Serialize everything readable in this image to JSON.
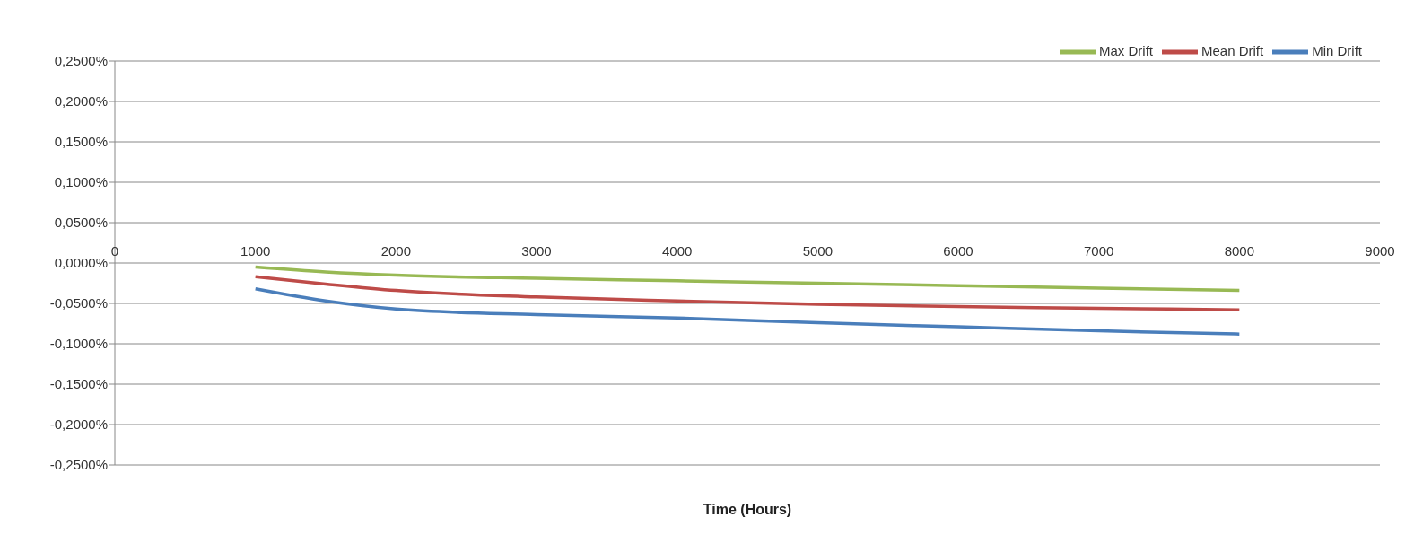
{
  "chart_data": {
    "type": "line",
    "xlabel": "Time (Hours)",
    "x": [
      1000,
      1500,
      2000,
      3000,
      4000,
      5000,
      6000,
      7000,
      8000
    ],
    "series": [
      {
        "name": "Min Drift",
        "color": "#4a7ebb",
        "values": [
          -0.032,
          -0.047,
          -0.057,
          -0.064,
          -0.068,
          -0.074,
          -0.079,
          -0.084,
          -0.088
        ]
      },
      {
        "name": "Mean Drift",
        "color": "#be4b48",
        "values": [
          -0.017,
          -0.026,
          -0.034,
          -0.042,
          -0.047,
          -0.051,
          -0.054,
          -0.056,
          -0.058
        ]
      },
      {
        "name": "Max Drift",
        "color": "#98b954",
        "values": [
          -0.005,
          -0.011,
          -0.015,
          -0.019,
          -0.022,
          -0.025,
          -0.028,
          -0.031,
          -0.034
        ]
      }
    ],
    "xlim": [
      0,
      9000
    ],
    "xticks": [
      0,
      1000,
      2000,
      3000,
      4000,
      5000,
      6000,
      7000,
      8000,
      9000
    ],
    "ylim": [
      -0.25,
      0.25
    ],
    "yticks": [
      {
        "value": -0.25,
        "label": "-0,2500%"
      },
      {
        "value": -0.2,
        "label": "-0,2000%"
      },
      {
        "value": -0.15,
        "label": "-0,1500%"
      },
      {
        "value": -0.1,
        "label": "-0,1000%"
      },
      {
        "value": -0.05,
        "label": "-0,0500%"
      },
      {
        "value": 0,
        "label": "0,0000%"
      },
      {
        "value": 0.05,
        "label": "0,0500%"
      },
      {
        "value": 0.1,
        "label": "0,1000%"
      },
      {
        "value": 0.15,
        "label": "0,1500%"
      },
      {
        "value": 0.2,
        "label": "0,2000%"
      },
      {
        "value": 0.25,
        "label": "0,2500%"
      }
    ],
    "grid": "y",
    "legend": "top right",
    "marker": "none",
    "line_style": "solid"
  }
}
